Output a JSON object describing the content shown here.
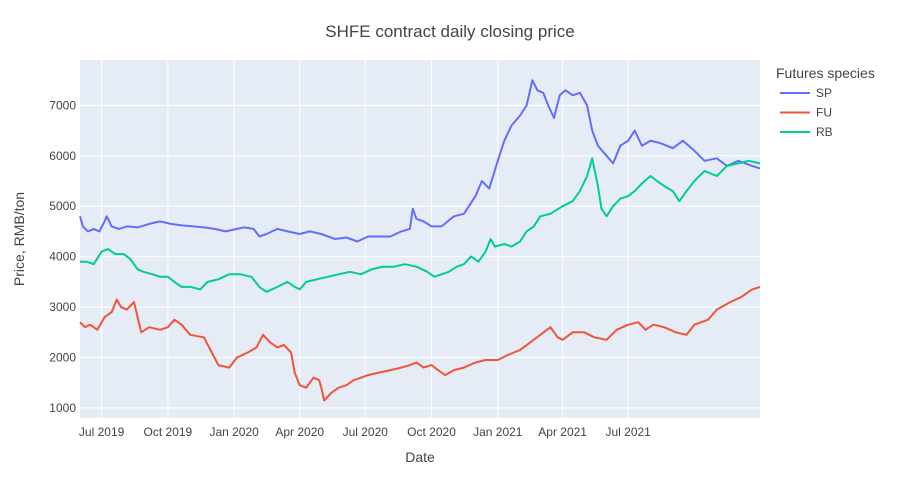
{
  "chart_data": {
    "type": "line",
    "title": "SHFE contract daily closing price",
    "xlabel": "Date",
    "ylabel": "Price, RMB/ton",
    "xlim": [
      "2019-06-01",
      "2021-12-31"
    ],
    "ylim": [
      800,
      7900
    ],
    "yticks": [
      1000,
      2000,
      3000,
      4000,
      5000,
      6000,
      7000
    ],
    "xticks": [
      {
        "date": "2019-07-01",
        "label": "Jul 2019"
      },
      {
        "date": "2019-10-01",
        "label": "Oct 2019"
      },
      {
        "date": "2020-01-01",
        "label": "Jan 2020"
      },
      {
        "date": "2020-04-01",
        "label": "Apr 2020"
      },
      {
        "date": "2020-07-01",
        "label": "Jul 2020"
      },
      {
        "date": "2020-10-01",
        "label": "Oct 2020"
      },
      {
        "date": "2021-01-01",
        "label": "Jan 2021"
      },
      {
        "date": "2021-04-01",
        "label": "Apr 2021"
      },
      {
        "date": "2021-07-01",
        "label": "Jul 2021"
      }
    ],
    "grid": true,
    "legend_title": "Futures species",
    "legend_position": "top-right outside plot",
    "background_color": "#E5ECF6",
    "grid_color": "#FFFFFF",
    "series": [
      {
        "name": "SP",
        "color": "#636EFA",
        "points": [
          [
            "2019-06-01",
            4800
          ],
          [
            "2019-06-05",
            4600
          ],
          [
            "2019-06-12",
            4500
          ],
          [
            "2019-06-20",
            4550
          ],
          [
            "2019-06-28",
            4500
          ],
          [
            "2019-07-05",
            4700
          ],
          [
            "2019-07-08",
            4800
          ],
          [
            "2019-07-15",
            4600
          ],
          [
            "2019-07-25",
            4550
          ],
          [
            "2019-08-05",
            4600
          ],
          [
            "2019-08-20",
            4580
          ],
          [
            "2019-09-05",
            4650
          ],
          [
            "2019-09-20",
            4700
          ],
          [
            "2019-10-05",
            4650
          ],
          [
            "2019-10-20",
            4620
          ],
          [
            "2019-11-05",
            4600
          ],
          [
            "2019-11-20",
            4580
          ],
          [
            "2019-12-05",
            4550
          ],
          [
            "2019-12-20",
            4500
          ],
          [
            "2020-01-05",
            4550
          ],
          [
            "2020-01-15",
            4580
          ],
          [
            "2020-01-28",
            4550
          ],
          [
            "2020-02-05",
            4400
          ],
          [
            "2020-02-15",
            4450
          ],
          [
            "2020-03-01",
            4550
          ],
          [
            "2020-03-15",
            4500
          ],
          [
            "2020-04-01",
            4450
          ],
          [
            "2020-04-15",
            4500
          ],
          [
            "2020-05-01",
            4450
          ],
          [
            "2020-05-20",
            4350
          ],
          [
            "2020-06-05",
            4380
          ],
          [
            "2020-06-20",
            4300
          ],
          [
            "2020-07-05",
            4400
          ],
          [
            "2020-07-20",
            4400
          ],
          [
            "2020-08-05",
            4400
          ],
          [
            "2020-08-20",
            4500
          ],
          [
            "2020-09-01",
            4550
          ],
          [
            "2020-09-05",
            4950
          ],
          [
            "2020-09-10",
            4750
          ],
          [
            "2020-09-20",
            4700
          ],
          [
            "2020-10-01",
            4600
          ],
          [
            "2020-10-15",
            4600
          ],
          [
            "2020-11-01",
            4800
          ],
          [
            "2020-11-15",
            4850
          ],
          [
            "2020-12-01",
            5200
          ],
          [
            "2020-12-10",
            5500
          ],
          [
            "2020-12-20",
            5350
          ],
          [
            "2021-01-01",
            5900
          ],
          [
            "2021-01-10",
            6300
          ],
          [
            "2021-01-20",
            6600
          ],
          [
            "2021-02-01",
            6800
          ],
          [
            "2021-02-10",
            7000
          ],
          [
            "2021-02-18",
            7500
          ],
          [
            "2021-02-25",
            7300
          ],
          [
            "2021-03-05",
            7250
          ],
          [
            "2021-03-12",
            7000
          ],
          [
            "2021-03-20",
            6750
          ],
          [
            "2021-03-28",
            7200
          ],
          [
            "2021-04-05",
            7300
          ],
          [
            "2021-04-15",
            7200
          ],
          [
            "2021-04-25",
            7250
          ],
          [
            "2021-05-05",
            7000
          ],
          [
            "2021-05-12",
            6500
          ],
          [
            "2021-05-20",
            6200
          ],
          [
            "2021-06-01",
            6000
          ],
          [
            "2021-06-10",
            5850
          ],
          [
            "2021-06-20",
            6200
          ],
          [
            "2021-07-01",
            6300
          ],
          [
            "2021-07-10",
            6500
          ],
          [
            "2021-07-20",
            6200
          ],
          [
            "2021-08-01",
            6300
          ],
          [
            "2021-08-15",
            6250
          ],
          [
            "2021-09-01",
            6150
          ],
          [
            "2021-09-15",
            6300
          ],
          [
            "2021-10-01",
            6100
          ],
          [
            "2021-10-15",
            5900
          ],
          [
            "2021-11-01",
            5950
          ],
          [
            "2021-11-15",
            5800
          ],
          [
            "2021-12-01",
            5900
          ],
          [
            "2021-12-20",
            5800
          ],
          [
            "2021-12-31",
            5750
          ]
        ]
      },
      {
        "name": "FU",
        "color": "#EF553B",
        "points": [
          [
            "2019-06-01",
            2700
          ],
          [
            "2019-06-08",
            2600
          ],
          [
            "2019-06-15",
            2650
          ],
          [
            "2019-06-25",
            2550
          ],
          [
            "2019-07-05",
            2800
          ],
          [
            "2019-07-15",
            2900
          ],
          [
            "2019-07-22",
            3150
          ],
          [
            "2019-07-28",
            3000
          ],
          [
            "2019-08-05",
            2950
          ],
          [
            "2019-08-15",
            3100
          ],
          [
            "2019-08-25",
            2500
          ],
          [
            "2019-09-05",
            2600
          ],
          [
            "2019-09-20",
            2550
          ],
          [
            "2019-10-01",
            2600
          ],
          [
            "2019-10-10",
            2750
          ],
          [
            "2019-10-20",
            2650
          ],
          [
            "2019-11-01",
            2450
          ],
          [
            "2019-11-20",
            2400
          ],
          [
            "2019-12-01",
            2100
          ],
          [
            "2019-12-10",
            1850
          ],
          [
            "2019-12-25",
            1800
          ],
          [
            "2020-01-05",
            2000
          ],
          [
            "2020-01-20",
            2100
          ],
          [
            "2020-02-01",
            2200
          ],
          [
            "2020-02-10",
            2450
          ],
          [
            "2020-02-20",
            2300
          ],
          [
            "2020-03-01",
            2200
          ],
          [
            "2020-03-10",
            2250
          ],
          [
            "2020-03-20",
            2100
          ],
          [
            "2020-03-25",
            1700
          ],
          [
            "2020-04-01",
            1450
          ],
          [
            "2020-04-10",
            1400
          ],
          [
            "2020-04-20",
            1600
          ],
          [
            "2020-04-28",
            1550
          ],
          [
            "2020-05-01",
            1400
          ],
          [
            "2020-05-05",
            1150
          ],
          [
            "2020-05-15",
            1300
          ],
          [
            "2020-05-25",
            1400
          ],
          [
            "2020-06-05",
            1450
          ],
          [
            "2020-06-15",
            1550
          ],
          [
            "2020-06-25",
            1600
          ],
          [
            "2020-07-05",
            1650
          ],
          [
            "2020-07-20",
            1700
          ],
          [
            "2020-08-05",
            1750
          ],
          [
            "2020-08-20",
            1800
          ],
          [
            "2020-09-01",
            1850
          ],
          [
            "2020-09-10",
            1900
          ],
          [
            "2020-09-20",
            1800
          ],
          [
            "2020-10-01",
            1850
          ],
          [
            "2020-10-10",
            1750
          ],
          [
            "2020-10-20",
            1650
          ],
          [
            "2020-11-01",
            1750
          ],
          [
            "2020-11-15",
            1800
          ],
          [
            "2020-12-01",
            1900
          ],
          [
            "2020-12-15",
            1950
          ],
          [
            "2021-01-01",
            1950
          ],
          [
            "2021-01-15",
            2050
          ],
          [
            "2021-02-01",
            2150
          ],
          [
            "2021-02-15",
            2300
          ],
          [
            "2021-03-01",
            2450
          ],
          [
            "2021-03-15",
            2600
          ],
          [
            "2021-03-25",
            2400
          ],
          [
            "2021-04-01",
            2350
          ],
          [
            "2021-04-15",
            2500
          ],
          [
            "2021-05-01",
            2500
          ],
          [
            "2021-05-15",
            2400
          ],
          [
            "2021-06-01",
            2350
          ],
          [
            "2021-06-15",
            2550
          ],
          [
            "2021-07-01",
            2650
          ],
          [
            "2021-07-15",
            2700
          ],
          [
            "2021-07-25",
            2550
          ],
          [
            "2021-08-05",
            2650
          ],
          [
            "2021-08-20",
            2600
          ],
          [
            "2021-09-05",
            2500
          ],
          [
            "2021-09-20",
            2450
          ],
          [
            "2021-10-01",
            2650
          ],
          [
            "2021-10-20",
            2750
          ],
          [
            "2021-11-01",
            2950
          ],
          [
            "2021-11-20",
            3100
          ],
          [
            "2021-12-05",
            3200
          ],
          [
            "2021-12-20",
            3350
          ],
          [
            "2021-12-31",
            3400
          ]
        ]
      },
      {
        "name": "RB",
        "color": "#00CC96",
        "points": [
          [
            "2019-06-01",
            3900
          ],
          [
            "2019-06-10",
            3900
          ],
          [
            "2019-06-20",
            3850
          ],
          [
            "2019-07-01",
            4100
          ],
          [
            "2019-07-10",
            4150
          ],
          [
            "2019-07-20",
            4050
          ],
          [
            "2019-08-01",
            4050
          ],
          [
            "2019-08-10",
            3950
          ],
          [
            "2019-08-20",
            3750
          ],
          [
            "2019-08-28",
            3700
          ],
          [
            "2019-09-10",
            3650
          ],
          [
            "2019-09-20",
            3600
          ],
          [
            "2019-10-01",
            3600
          ],
          [
            "2019-10-10",
            3500
          ],
          [
            "2019-10-20",
            3400
          ],
          [
            "2019-11-01",
            3400
          ],
          [
            "2019-11-15",
            3350
          ],
          [
            "2019-11-25",
            3500
          ],
          [
            "2019-12-10",
            3550
          ],
          [
            "2019-12-25",
            3650
          ],
          [
            "2020-01-10",
            3650
          ],
          [
            "2020-01-25",
            3600
          ],
          [
            "2020-02-05",
            3400
          ],
          [
            "2020-02-15",
            3300
          ],
          [
            "2020-03-01",
            3400
          ],
          [
            "2020-03-15",
            3500
          ],
          [
            "2020-03-25",
            3400
          ],
          [
            "2020-04-01",
            3350
          ],
          [
            "2020-04-10",
            3500
          ],
          [
            "2020-04-25",
            3550
          ],
          [
            "2020-05-10",
            3600
          ],
          [
            "2020-05-25",
            3650
          ],
          [
            "2020-06-10",
            3700
          ],
          [
            "2020-06-25",
            3650
          ],
          [
            "2020-07-10",
            3750
          ],
          [
            "2020-07-25",
            3800
          ],
          [
            "2020-08-10",
            3800
          ],
          [
            "2020-08-25",
            3850
          ],
          [
            "2020-09-10",
            3800
          ],
          [
            "2020-09-25",
            3700
          ],
          [
            "2020-10-05",
            3600
          ],
          [
            "2020-10-15",
            3650
          ],
          [
            "2020-10-25",
            3700
          ],
          [
            "2020-11-05",
            3800
          ],
          [
            "2020-11-15",
            3850
          ],
          [
            "2020-11-25",
            4000
          ],
          [
            "2020-12-05",
            3900
          ],
          [
            "2020-12-15",
            4100
          ],
          [
            "2020-12-22",
            4350
          ],
          [
            "2020-12-28",
            4200
          ],
          [
            "2021-01-10",
            4250
          ],
          [
            "2021-01-20",
            4200
          ],
          [
            "2021-02-01",
            4300
          ],
          [
            "2021-02-10",
            4500
          ],
          [
            "2021-02-20",
            4600
          ],
          [
            "2021-03-01",
            4800
          ],
          [
            "2021-03-15",
            4850
          ],
          [
            "2021-04-01",
            5000
          ],
          [
            "2021-04-15",
            5100
          ],
          [
            "2021-04-25",
            5300
          ],
          [
            "2021-05-05",
            5600
          ],
          [
            "2021-05-12",
            5950
          ],
          [
            "2021-05-20",
            5400
          ],
          [
            "2021-05-25",
            4950
          ],
          [
            "2021-06-01",
            4800
          ],
          [
            "2021-06-10",
            5000
          ],
          [
            "2021-06-20",
            5150
          ],
          [
            "2021-07-01",
            5200
          ],
          [
            "2021-07-10",
            5300
          ],
          [
            "2021-07-20",
            5450
          ],
          [
            "2021-08-01",
            5600
          ],
          [
            "2021-08-10",
            5500
          ],
          [
            "2021-08-20",
            5400
          ],
          [
            "2021-09-01",
            5300
          ],
          [
            "2021-09-10",
            5100
          ],
          [
            "2021-09-20",
            5300
          ],
          [
            "2021-10-01",
            5500
          ],
          [
            "2021-10-15",
            5700
          ],
          [
            "2021-11-01",
            5600
          ],
          [
            "2021-11-15",
            5800
          ],
          [
            "2021-12-01",
            5850
          ],
          [
            "2021-12-15",
            5900
          ],
          [
            "2021-12-31",
            5850
          ]
        ]
      }
    ]
  }
}
